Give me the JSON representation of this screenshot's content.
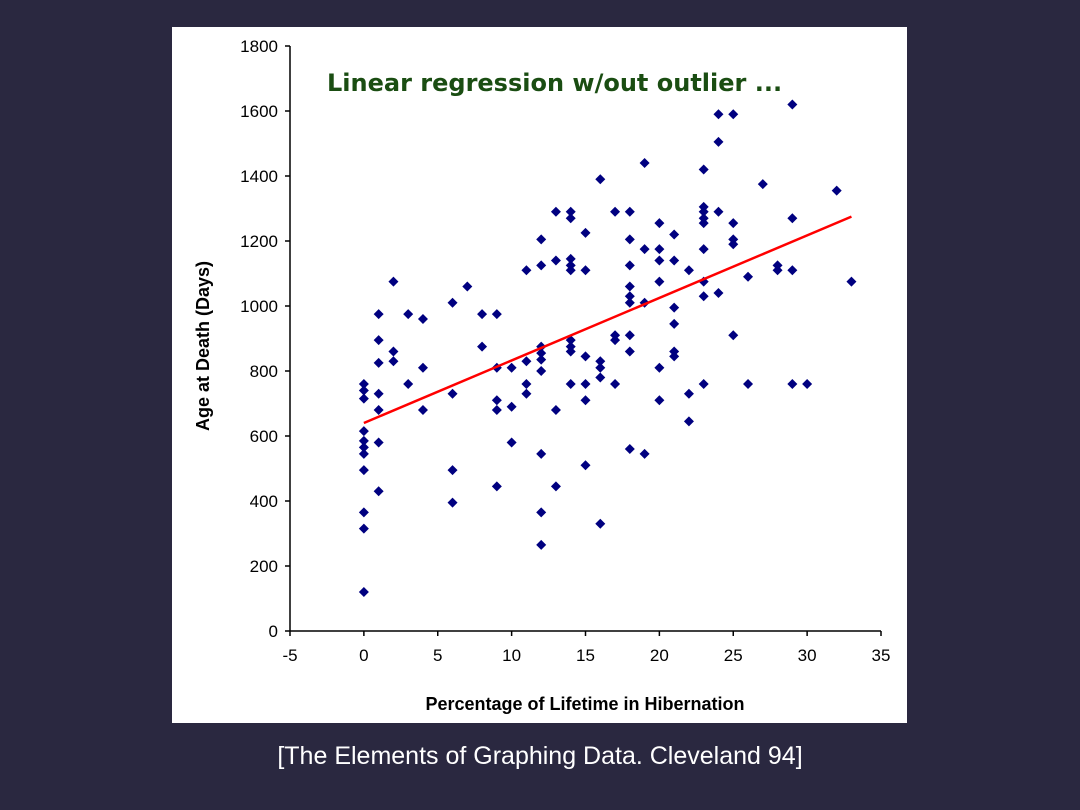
{
  "caption": "[The Elements of Graphing Data. Cleveland 94]",
  "chart_data": {
    "type": "scatter",
    "title": "Linear regression w/out outlier ...",
    "xlabel": "Percentage of Lifetime in Hibernation",
    "ylabel": "Age at Death (Days)",
    "xlim": [
      -5,
      35
    ],
    "ylim": [
      0,
      1800
    ],
    "xticks": [
      -5,
      0,
      5,
      10,
      15,
      20,
      25,
      30,
      35
    ],
    "yticks": [
      0,
      200,
      400,
      600,
      800,
      1000,
      1200,
      1400,
      1600,
      1800
    ],
    "grid": false,
    "colors": {
      "points": "#000080",
      "regression": "#ff0000",
      "title": "#1a4d12"
    },
    "regression_line": {
      "x": [
        0,
        33
      ],
      "y": [
        640,
        1275
      ]
    },
    "points": [
      [
        0,
        120
      ],
      [
        0,
        315
      ],
      [
        0,
        365
      ],
      [
        0,
        495
      ],
      [
        0,
        545
      ],
      [
        0,
        565
      ],
      [
        0,
        585
      ],
      [
        0,
        615
      ],
      [
        0,
        715
      ],
      [
        0,
        740
      ],
      [
        0,
        760
      ],
      [
        1,
        430
      ],
      [
        1,
        580
      ],
      [
        1,
        680
      ],
      [
        1,
        730
      ],
      [
        1,
        825
      ],
      [
        1,
        895
      ],
      [
        1,
        975
      ],
      [
        2,
        830
      ],
      [
        2,
        860
      ],
      [
        2,
        1075
      ],
      [
        3,
        760
      ],
      [
        3,
        975
      ],
      [
        4,
        680
      ],
      [
        4,
        810
      ],
      [
        4,
        960
      ],
      [
        6,
        395
      ],
      [
        6,
        495
      ],
      [
        6,
        730
      ],
      [
        6,
        1010
      ],
      [
        7,
        1060
      ],
      [
        8,
        875
      ],
      [
        8,
        975
      ],
      [
        9,
        445
      ],
      [
        9,
        680
      ],
      [
        9,
        710
      ],
      [
        9,
        810
      ],
      [
        9,
        975
      ],
      [
        10,
        580
      ],
      [
        10,
        690
      ],
      [
        10,
        810
      ],
      [
        11,
        730
      ],
      [
        11,
        760
      ],
      [
        11,
        830
      ],
      [
        11,
        1110
      ],
      [
        12,
        265
      ],
      [
        12,
        365
      ],
      [
        12,
        545
      ],
      [
        12,
        800
      ],
      [
        12,
        835
      ],
      [
        12,
        855
      ],
      [
        12,
        875
      ],
      [
        12,
        1125
      ],
      [
        12,
        1205
      ],
      [
        13,
        445
      ],
      [
        13,
        680
      ],
      [
        13,
        1140
      ],
      [
        13,
        1290
      ],
      [
        14,
        760
      ],
      [
        14,
        860
      ],
      [
        14,
        875
      ],
      [
        14,
        895
      ],
      [
        14,
        1110
      ],
      [
        14,
        1125
      ],
      [
        14,
        1145
      ],
      [
        14,
        1270
      ],
      [
        14,
        1290
      ],
      [
        15,
        510
      ],
      [
        15,
        710
      ],
      [
        15,
        760
      ],
      [
        15,
        845
      ],
      [
        15,
        1110
      ],
      [
        15,
        1225
      ],
      [
        16,
        330
      ],
      [
        16,
        780
      ],
      [
        16,
        810
      ],
      [
        16,
        830
      ],
      [
        16,
        1390
      ],
      [
        17,
        760
      ],
      [
        17,
        895
      ],
      [
        17,
        910
      ],
      [
        17,
        1290
      ],
      [
        18,
        560
      ],
      [
        18,
        860
      ],
      [
        18,
        910
      ],
      [
        18,
        1010
      ],
      [
        18,
        1030
      ],
      [
        18,
        1060
      ],
      [
        18,
        1125
      ],
      [
        18,
        1205
      ],
      [
        18,
        1290
      ],
      [
        19,
        545
      ],
      [
        19,
        1010
      ],
      [
        19,
        1175
      ],
      [
        19,
        1440
      ],
      [
        20,
        710
      ],
      [
        20,
        810
      ],
      [
        20,
        1075
      ],
      [
        20,
        1140
      ],
      [
        20,
        1175
      ],
      [
        20,
        1255
      ],
      [
        21,
        845
      ],
      [
        21,
        860
      ],
      [
        21,
        945
      ],
      [
        21,
        995
      ],
      [
        21,
        1140
      ],
      [
        21,
        1220
      ],
      [
        22,
        645
      ],
      [
        22,
        730
      ],
      [
        22,
        1110
      ],
      [
        23,
        760
      ],
      [
        23,
        1030
      ],
      [
        23,
        1075
      ],
      [
        23,
        1175
      ],
      [
        23,
        1255
      ],
      [
        23,
        1270
      ],
      [
        23,
        1290
      ],
      [
        23,
        1305
      ],
      [
        23,
        1420
      ],
      [
        24,
        1040
      ],
      [
        24,
        1290
      ],
      [
        24,
        1505
      ],
      [
        24,
        1590
      ],
      [
        25,
        910
      ],
      [
        25,
        1190
      ],
      [
        25,
        1205
      ],
      [
        25,
        1255
      ],
      [
        25,
        1590
      ],
      [
        26,
        760
      ],
      [
        26,
        1090
      ],
      [
        27,
        1375
      ],
      [
        28,
        1110
      ],
      [
        28,
        1125
      ],
      [
        29,
        760
      ],
      [
        29,
        1110
      ],
      [
        29,
        1270
      ],
      [
        29,
        1620
      ],
      [
        30,
        760
      ],
      [
        32,
        1355
      ],
      [
        33,
        1075
      ]
    ]
  }
}
